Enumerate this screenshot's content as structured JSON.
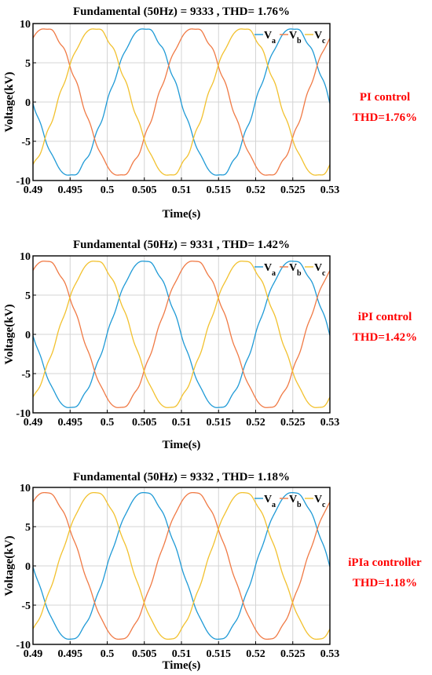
{
  "chart_data": [
    {
      "type": "line",
      "title": "Fundamental (50Hz) = 9333 , THD= 1.76%",
      "xlabel": "Time(s)",
      "ylabel": "Voltage(kV)",
      "xlim": [
        0.49,
        0.53
      ],
      "ylim": [
        -10,
        10
      ],
      "x_ticks": [
        "0.49",
        "0.495",
        "0.5",
        "0.505",
        "0.51",
        "0.515",
        "0.52",
        "0.525",
        "0.53"
      ],
      "y_ticks": [
        "10",
        "5",
        "0",
        "-5",
        "-10"
      ],
      "grid": true,
      "legend": {
        "position": "top-right",
        "entries": [
          {
            "base": "V",
            "sub": "a"
          },
          {
            "base": "V",
            "sub": "b"
          },
          {
            "base": "V",
            "sub": "c"
          }
        ]
      },
      "series": [
        {
          "name": "Va",
          "color": "#1f9ad6",
          "amplitude": 9.4,
          "frequency_hz": 50,
          "phase_deg": 0,
          "ripple_kv": 0.18
        },
        {
          "name": "Vb",
          "color": "#f07a45",
          "amplitude": 9.4,
          "frequency_hz": 50,
          "phase_deg": -120,
          "ripple_kv": 0.18
        },
        {
          "name": "Vc",
          "color": "#f2c12e",
          "amplitude": 9.4,
          "frequency_hz": 50,
          "phase_deg": 120,
          "ripple_kv": 0.18
        }
      ],
      "note": [
        "PI control",
        "THD=1.76%"
      ]
    },
    {
      "type": "line",
      "title": "Fundamental (50Hz) = 9331 , THD= 1.42%",
      "xlabel": "Time(s)",
      "ylabel": "Voltage(kV)",
      "xlim": [
        0.49,
        0.53
      ],
      "ylim": [
        -10,
        10
      ],
      "x_ticks": [
        "0.49",
        "0.495",
        "0.5",
        "0.505",
        "0.51",
        "0.515",
        "0.52",
        "0.525",
        "0.53"
      ],
      "y_ticks": [
        "10",
        "5",
        "0",
        "-5",
        "-10"
      ],
      "grid": true,
      "legend": {
        "position": "top-right",
        "entries": [
          {
            "base": "V",
            "sub": "a"
          },
          {
            "base": "V",
            "sub": "b"
          },
          {
            "base": "V",
            "sub": "c"
          }
        ]
      },
      "series": [
        {
          "name": "Va",
          "color": "#1f9ad6",
          "amplitude": 9.4,
          "frequency_hz": 50,
          "phase_deg": 0,
          "ripple_kv": 0.14
        },
        {
          "name": "Vb",
          "color": "#f07a45",
          "amplitude": 9.4,
          "frequency_hz": 50,
          "phase_deg": -120,
          "ripple_kv": 0.14
        },
        {
          "name": "Vc",
          "color": "#f2c12e",
          "amplitude": 9.4,
          "frequency_hz": 50,
          "phase_deg": 120,
          "ripple_kv": 0.14
        }
      ],
      "note": [
        "iPI control",
        "THD=1.42%"
      ]
    },
    {
      "type": "line",
      "title": "Fundamental (50Hz) = 9332 , THD= 1.18%",
      "xlabel": "Time(s)",
      "ylabel": "Voltage(kV)",
      "xlim": [
        0.49,
        0.53
      ],
      "ylim": [
        -10,
        10
      ],
      "x_ticks": [
        "0.49",
        "0.495",
        "0.5",
        "0.505",
        "0.51",
        "0.515",
        "0.52",
        "0.525",
        "0.53"
      ],
      "y_ticks": [
        "10",
        "5",
        "0",
        "-5",
        "-10"
      ],
      "grid": true,
      "legend": {
        "position": "top-right",
        "entries": [
          {
            "base": "V",
            "sub": "a"
          },
          {
            "base": "V",
            "sub": "b"
          },
          {
            "base": "V",
            "sub": "c"
          }
        ]
      },
      "series": [
        {
          "name": "Va",
          "color": "#1f9ad6",
          "amplitude": 9.4,
          "frequency_hz": 50,
          "phase_deg": 0,
          "ripple_kv": 0.11
        },
        {
          "name": "Vb",
          "color": "#f07a45",
          "amplitude": 9.4,
          "frequency_hz": 50,
          "phase_deg": -120,
          "ripple_kv": 0.11
        },
        {
          "name": "Vc",
          "color": "#f2c12e",
          "amplitude": 9.4,
          "frequency_hz": 50,
          "phase_deg": 120,
          "ripple_kv": 0.11
        }
      ],
      "note": [
        "iPIa controller",
        "THD=1.18%"
      ]
    }
  ]
}
